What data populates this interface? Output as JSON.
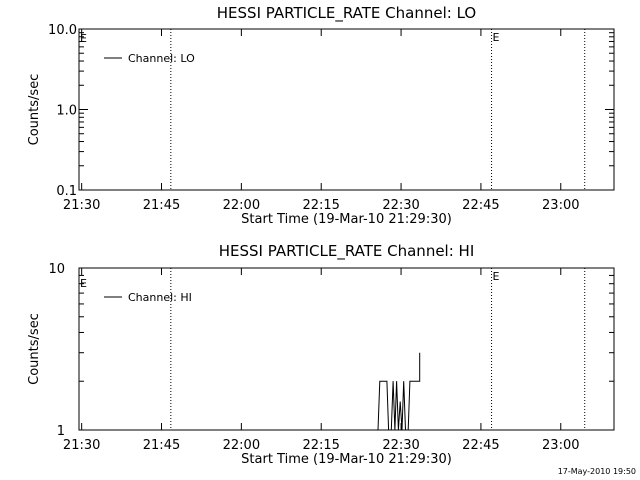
{
  "footer": {
    "timestamp": "17-May-2010 19:50"
  },
  "chart_data": [
    {
      "type": "line",
      "title": "HESSI PARTICLE_RATE Channel: LO",
      "xlabel": "Start Time (19-Mar-10 21:29:30)",
      "ylabel": "Counts/sec",
      "y_scale": "log",
      "ylim": [
        0.1,
        10.0
      ],
      "y_ticks": [
        {
          "value": 10.0,
          "label": "10.0"
        },
        {
          "value": 1.0,
          "label": "1.0"
        },
        {
          "value": 0.1,
          "label": "0.1"
        }
      ],
      "xlim": [
        "21:29:30",
        "23:10:00"
      ],
      "x_ticks": [
        "21:30",
        "21:45",
        "22:00",
        "22:15",
        "22:30",
        "22:45",
        "23:00"
      ],
      "legend": {
        "position": "top-left",
        "entries": [
          "Channel: LO"
        ]
      },
      "vertical_markers": [
        {
          "time": "21:46:45",
          "label": ""
        },
        {
          "time": "22:47:00",
          "label": "E"
        },
        {
          "time": "23:04:30",
          "label": ""
        }
      ],
      "edge_labels": [
        "E"
      ],
      "series": [
        {
          "name": "Channel: LO",
          "points": []
        }
      ]
    },
    {
      "type": "line",
      "title": "HESSI PARTICLE_RATE Channel: HI",
      "xlabel": "Start Time (19-Mar-10 21:29:30)",
      "ylabel": "Counts/sec",
      "y_scale": "log",
      "ylim": [
        1,
        10
      ],
      "y_ticks": [
        {
          "value": 10,
          "label": "10"
        },
        {
          "value": 1,
          "label": "1"
        }
      ],
      "xlim": [
        "21:29:30",
        "23:10:00"
      ],
      "x_ticks": [
        "21:30",
        "21:45",
        "22:00",
        "22:15",
        "22:30",
        "22:45",
        "23:00"
      ],
      "legend": {
        "position": "top-left",
        "entries": [
          "Channel: HI"
        ]
      },
      "vertical_markers": [
        {
          "time": "21:46:45",
          "label": ""
        },
        {
          "time": "22:47:00",
          "label": "E"
        },
        {
          "time": "23:04:30",
          "label": ""
        }
      ],
      "edge_labels": [
        "E"
      ],
      "series": [
        {
          "name": "Channel: HI",
          "points": [
            [
              "22:25:40",
              1
            ],
            [
              "22:26:00",
              2
            ],
            [
              "22:27:20",
              2
            ],
            [
              "22:27:40",
              1
            ],
            [
              "22:28:10",
              1
            ],
            [
              "22:28:30",
              2
            ],
            [
              "22:28:50",
              1
            ],
            [
              "22:29:10",
              2
            ],
            [
              "22:29:30",
              1
            ],
            [
              "22:29:50",
              1.5
            ],
            [
              "22:30:10",
              1
            ],
            [
              "22:30:30",
              2
            ],
            [
              "22:30:50",
              1
            ],
            [
              "22:31:20",
              1
            ],
            [
              "22:31:40",
              2
            ],
            [
              "22:32:20",
              2
            ],
            [
              "22:32:40",
              2
            ],
            [
              "22:33:30",
              2
            ],
            [
              "22:33:30",
              3
            ]
          ]
        }
      ]
    }
  ]
}
